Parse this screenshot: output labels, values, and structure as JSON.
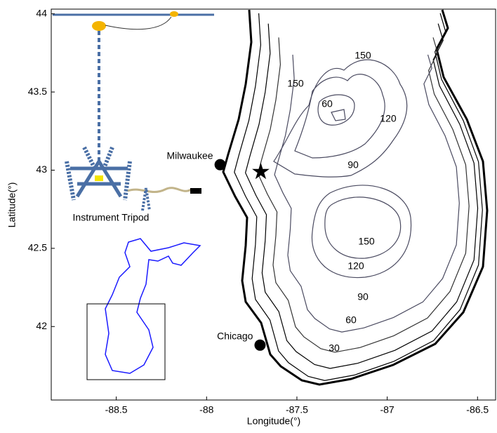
{
  "chart_data": {
    "type": "map",
    "xlabel": "Longitude(°)",
    "ylabel": "Latitude(°)",
    "xlim": [
      -88.86,
      -86.4
    ],
    "ylim": [
      41.53,
      44.03
    ],
    "xticks": [
      -88.5,
      -88,
      -87.5,
      -87,
      -86.5
    ],
    "yticks": [
      {
        "value": 42,
        "label": "42"
      },
      {
        "value": 42.5,
        "label": "42.5"
      },
      {
        "value": 43,
        "label": "43"
      },
      {
        "value": 43.5,
        "label": "43.5"
      },
      {
        "value": 44,
        "label": "44"
      }
    ],
    "cities": [
      {
        "name": "Milwaukee",
        "x": -87.925,
        "y": 43.035
      },
      {
        "name": "Chicago",
        "x": -87.704,
        "y": 41.881
      }
    ],
    "site": {
      "x": -87.7,
      "y": 42.99
    },
    "contour_labels": [
      150,
      150,
      60,
      120,
      90,
      150,
      120,
      90,
      60,
      30
    ],
    "instrument_label": "Instrument Tripod"
  }
}
